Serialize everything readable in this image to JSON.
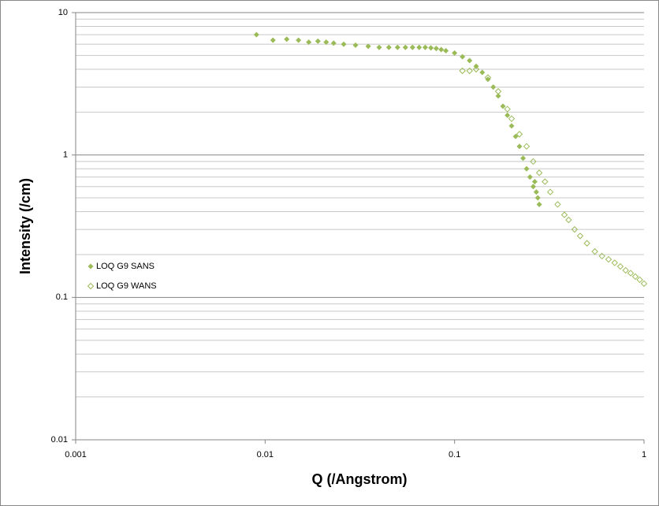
{
  "chart_data": {
    "type": "scatter",
    "x_label": "Q  (/Angstrom)",
    "y_label": "Intensity  (/cm)",
    "x_log": true,
    "y_log": true,
    "xlim": [
      0.001,
      1
    ],
    "xticks": [
      0.001,
      0.01,
      0.1,
      1
    ],
    "ylim": [
      0.01,
      10
    ],
    "yticks": [
      0.01,
      0.1,
      1,
      10
    ],
    "grid": true,
    "minor_grid": true,
    "legend": "left",
    "series": [
      {
        "name": "LOQ G9 SANS",
        "color": "#9bbb59",
        "marker": "filled-diamond",
        "x": [
          0.009,
          0.011,
          0.013,
          0.015,
          0.017,
          0.019,
          0.021,
          0.023,
          0.026,
          0.03,
          0.035,
          0.04,
          0.045,
          0.05,
          0.055,
          0.06,
          0.065,
          0.07,
          0.075,
          0.08,
          0.085,
          0.09,
          0.1,
          0.11,
          0.12,
          0.13,
          0.14,
          0.15,
          0.16,
          0.17,
          0.18,
          0.19,
          0.2,
          0.21,
          0.22,
          0.23,
          0.24,
          0.25,
          0.26,
          0.265,
          0.27,
          0.275,
          0.28
        ],
        "values": [
          7.0,
          6.4,
          6.5,
          6.4,
          6.2,
          6.3,
          6.2,
          6.1,
          6.0,
          5.9,
          5.8,
          5.7,
          5.7,
          5.7,
          5.7,
          5.7,
          5.7,
          5.7,
          5.65,
          5.6,
          5.5,
          5.4,
          5.2,
          4.9,
          4.6,
          4.2,
          3.8,
          3.4,
          3.0,
          2.6,
          2.2,
          1.9,
          1.6,
          1.35,
          1.15,
          0.95,
          0.8,
          0.7,
          0.6,
          0.65,
          0.55,
          0.5,
          0.45
        ]
      },
      {
        "name": "LOQ G9 WANS",
        "color": "#9bbb59",
        "marker": "open-diamond",
        "x": [
          0.11,
          0.12,
          0.13,
          0.15,
          0.17,
          0.19,
          0.2,
          0.22,
          0.24,
          0.26,
          0.28,
          0.3,
          0.32,
          0.35,
          0.38,
          0.4,
          0.43,
          0.46,
          0.5,
          0.55,
          0.6,
          0.65,
          0.7,
          0.75,
          0.8,
          0.85,
          0.9,
          0.95,
          1.0
        ],
        "values": [
          3.9,
          3.9,
          4.0,
          3.5,
          2.8,
          2.1,
          1.8,
          1.4,
          1.15,
          0.9,
          0.75,
          0.65,
          0.55,
          0.45,
          0.38,
          0.35,
          0.3,
          0.27,
          0.24,
          0.21,
          0.195,
          0.185,
          0.175,
          0.165,
          0.155,
          0.148,
          0.14,
          0.133,
          0.125
        ]
      }
    ]
  }
}
